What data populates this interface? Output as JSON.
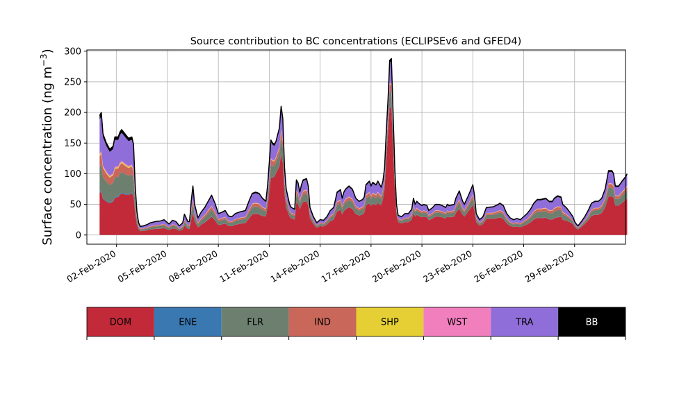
{
  "chart_data": {
    "type": "area",
    "stacked": true,
    "title": "Source contribution to BC concentrations (ECLIPSEv6 and GFED4)",
    "ylabel_main": "Surface concentration (ng m",
    "ylabel_sup": "−3",
    "ylabel_close": ")",
    "xlabel": "",
    "ylim": [
      -15,
      302
    ],
    "xlim": [
      -0.75,
      31.0
    ],
    "grid": true,
    "x_axis_start": "2020-02-01",
    "x_ticks": [
      {
        "x": 1,
        "label": "02-Feb-2020"
      },
      {
        "x": 4,
        "label": "05-Feb-2020"
      },
      {
        "x": 7,
        "label": "08-Feb-2020"
      },
      {
        "x": 10,
        "label": "11-Feb-2020"
      },
      {
        "x": 13,
        "label": "14-Feb-2020"
      },
      {
        "x": 16,
        "label": "17-Feb-2020"
      },
      {
        "x": 19,
        "label": "20-Feb-2020"
      },
      {
        "x": 22,
        "label": "23-Feb-2020"
      },
      {
        "x": 25,
        "label": "26-Feb-2020"
      },
      {
        "x": 28,
        "label": "29-Feb-2020"
      }
    ],
    "y_ticks": [
      0,
      50,
      100,
      150,
      200,
      250,
      300
    ],
    "legend_placement": "bottom",
    "series": [
      {
        "name": "DOM",
        "color": "#c22a39"
      },
      {
        "name": "ENE",
        "color": "#3a78b1"
      },
      {
        "name": "FLR",
        "color": "#6d8070"
      },
      {
        "name": "IND",
        "color": "#c8675a"
      },
      {
        "name": "SHP",
        "color": "#e5cf34"
      },
      {
        "name": "WST",
        "color": "#f17fbe"
      },
      {
        "name": "TRA",
        "color": "#906ed9"
      },
      {
        "name": "BB",
        "color": "#000000"
      }
    ],
    "total_points": [
      [
        0.0,
        195
      ],
      [
        0.1,
        200
      ],
      [
        0.2,
        165
      ],
      [
        0.4,
        150
      ],
      [
        0.6,
        140
      ],
      [
        0.8,
        145
      ],
      [
        0.9,
        160
      ],
      [
        1.1,
        160
      ],
      [
        1.2,
        168
      ],
      [
        1.3,
        172
      ],
      [
        1.5,
        165
      ],
      [
        1.7,
        158
      ],
      [
        1.9,
        160
      ],
      [
        2.0,
        148
      ],
      [
        2.1,
        80
      ],
      [
        2.2,
        38
      ],
      [
        2.3,
        20
      ],
      [
        2.4,
        14
      ],
      [
        2.6,
        15
      ],
      [
        2.8,
        17
      ],
      [
        3.0,
        20
      ],
      [
        3.3,
        22
      ],
      [
        3.6,
        23
      ],
      [
        3.8,
        25
      ],
      [
        4.0,
        20
      ],
      [
        4.1,
        18
      ],
      [
        4.3,
        24
      ],
      [
        4.5,
        22
      ],
      [
        4.7,
        15
      ],
      [
        4.9,
        20
      ],
      [
        5.0,
        34
      ],
      [
        5.2,
        22
      ],
      [
        5.3,
        22
      ],
      [
        5.4,
        55
      ],
      [
        5.5,
        80
      ],
      [
        5.6,
        50
      ],
      [
        5.8,
        28
      ],
      [
        6.0,
        38
      ],
      [
        6.2,
        45
      ],
      [
        6.4,
        55
      ],
      [
        6.6,
        65
      ],
      [
        6.8,
        52
      ],
      [
        7.0,
        35
      ],
      [
        7.2,
        37
      ],
      [
        7.4,
        40
      ],
      [
        7.6,
        31
      ],
      [
        7.8,
        30
      ],
      [
        8.0,
        35
      ],
      [
        8.3,
        38
      ],
      [
        8.6,
        40
      ],
      [
        8.8,
        55
      ],
      [
        9.0,
        68
      ],
      [
        9.2,
        70
      ],
      [
        9.4,
        68
      ],
      [
        9.6,
        60
      ],
      [
        9.8,
        55
      ],
      [
        9.9,
        80
      ],
      [
        10.1,
        155
      ],
      [
        10.2,
        150
      ],
      [
        10.3,
        148
      ],
      [
        10.4,
        153
      ],
      [
        10.6,
        175
      ],
      [
        10.7,
        210
      ],
      [
        10.8,
        190
      ],
      [
        10.9,
        110
      ],
      [
        11.0,
        75
      ],
      [
        11.2,
        50
      ],
      [
        11.3,
        45
      ],
      [
        11.5,
        42
      ],
      [
        11.6,
        90
      ],
      [
        11.7,
        85
      ],
      [
        11.8,
        70
      ],
      [
        11.9,
        82
      ],
      [
        12.0,
        90
      ],
      [
        12.2,
        92
      ],
      [
        12.3,
        80
      ],
      [
        12.4,
        45
      ],
      [
        12.6,
        30
      ],
      [
        12.8,
        20
      ],
      [
        13.0,
        25
      ],
      [
        13.2,
        24
      ],
      [
        13.4,
        30
      ],
      [
        13.6,
        40
      ],
      [
        13.8,
        45
      ],
      [
        14.0,
        70
      ],
      [
        14.2,
        74
      ],
      [
        14.3,
        60
      ],
      [
        14.4,
        70
      ],
      [
        14.5,
        75
      ],
      [
        14.7,
        80
      ],
      [
        14.9,
        75
      ],
      [
        15.1,
        60
      ],
      [
        15.3,
        55
      ],
      [
        15.5,
        58
      ],
      [
        15.6,
        62
      ],
      [
        15.7,
        82
      ],
      [
        15.9,
        88
      ],
      [
        16.0,
        80
      ],
      [
        16.1,
        86
      ],
      [
        16.3,
        82
      ],
      [
        16.4,
        88
      ],
      [
        16.6,
        78
      ],
      [
        16.7,
        88
      ],
      [
        16.8,
        110
      ],
      [
        16.9,
        170
      ],
      [
        17.0,
        220
      ],
      [
        17.1,
        285
      ],
      [
        17.2,
        288
      ],
      [
        17.3,
        200
      ],
      [
        17.4,
        110
      ],
      [
        17.5,
        50
      ],
      [
        17.6,
        32
      ],
      [
        17.8,
        30
      ],
      [
        18.0,
        35
      ],
      [
        18.2,
        35
      ],
      [
        18.4,
        42
      ],
      [
        18.5,
        60
      ],
      [
        18.6,
        50
      ],
      [
        18.7,
        55
      ],
      [
        18.8,
        52
      ],
      [
        19.0,
        48
      ],
      [
        19.1,
        50
      ],
      [
        19.3,
        48
      ],
      [
        19.4,
        40
      ],
      [
        19.6,
        44
      ],
      [
        19.8,
        50
      ],
      [
        20.0,
        50
      ],
      [
        20.2,
        48
      ],
      [
        20.4,
        45
      ],
      [
        20.5,
        50
      ],
      [
        20.6,
        48
      ],
      [
        20.9,
        50
      ],
      [
        21.0,
        60
      ],
      [
        21.2,
        72
      ],
      [
        21.4,
        55
      ],
      [
        21.5,
        50
      ],
      [
        21.7,
        62
      ],
      [
        21.9,
        75
      ],
      [
        22.0,
        82
      ],
      [
        22.1,
        65
      ],
      [
        22.2,
        35
      ],
      [
        22.3,
        30
      ],
      [
        22.4,
        25
      ],
      [
        22.6,
        30
      ],
      [
        22.8,
        45
      ],
      [
        23.2,
        46
      ],
      [
        23.5,
        50
      ],
      [
        23.6,
        52
      ],
      [
        23.8,
        48
      ],
      [
        24.0,
        35
      ],
      [
        24.2,
        28
      ],
      [
        24.4,
        25
      ],
      [
        24.6,
        27
      ],
      [
        24.8,
        25
      ],
      [
        25.0,
        30
      ],
      [
        25.2,
        35
      ],
      [
        25.4,
        42
      ],
      [
        25.6,
        52
      ],
      [
        25.8,
        58
      ],
      [
        26.0,
        58
      ],
      [
        26.3,
        60
      ],
      [
        26.5,
        55
      ],
      [
        26.7,
        55
      ],
      [
        26.8,
        60
      ],
      [
        27.0,
        64
      ],
      [
        27.2,
        62
      ],
      [
        27.3,
        50
      ],
      [
        27.5,
        45
      ],
      [
        27.7,
        38
      ],
      [
        27.9,
        30
      ],
      [
        28.0,
        22
      ],
      [
        28.1,
        18
      ],
      [
        28.2,
        15
      ],
      [
        28.4,
        22
      ],
      [
        28.6,
        30
      ],
      [
        28.8,
        40
      ],
      [
        29.0,
        52
      ],
      [
        29.2,
        55
      ],
      [
        29.4,
        55
      ],
      [
        29.6,
        60
      ],
      [
        29.8,
        75
      ],
      [
        29.9,
        90
      ],
      [
        30.0,
        105
      ],
      [
        30.2,
        105
      ],
      [
        30.3,
        100
      ],
      [
        30.4,
        80
      ],
      [
        30.6,
        80
      ],
      [
        30.8,
        88
      ],
      [
        31.0,
        95
      ],
      [
        31.1,
        100
      ]
    ],
    "dom_fraction_points": [
      [
        0,
        0.35
      ],
      [
        1.5,
        0.4
      ],
      [
        2.3,
        0.45
      ],
      [
        5.0,
        0.45
      ],
      [
        6.0,
        0.45
      ],
      [
        9.5,
        0.5
      ],
      [
        10.4,
        0.66
      ],
      [
        11.0,
        0.6
      ],
      [
        12.5,
        0.6
      ],
      [
        14.0,
        0.55
      ],
      [
        16.5,
        0.6
      ],
      [
        17.0,
        0.75
      ],
      [
        17.3,
        0.7
      ],
      [
        18.0,
        0.6
      ],
      [
        22.5,
        0.6
      ],
      [
        25.0,
        0.5
      ],
      [
        27.0,
        0.45
      ],
      [
        28.0,
        0.6
      ],
      [
        31.1,
        0.6
      ]
    ],
    "source_fractions": {
      "DOM": 0,
      "ENE": 0.01,
      "FLR": 0.26,
      "IND": 0.11,
      "SHP": 0.015,
      "WST": 0.015,
      "TRA": 0.35,
      "BB": 0.04
    }
  }
}
